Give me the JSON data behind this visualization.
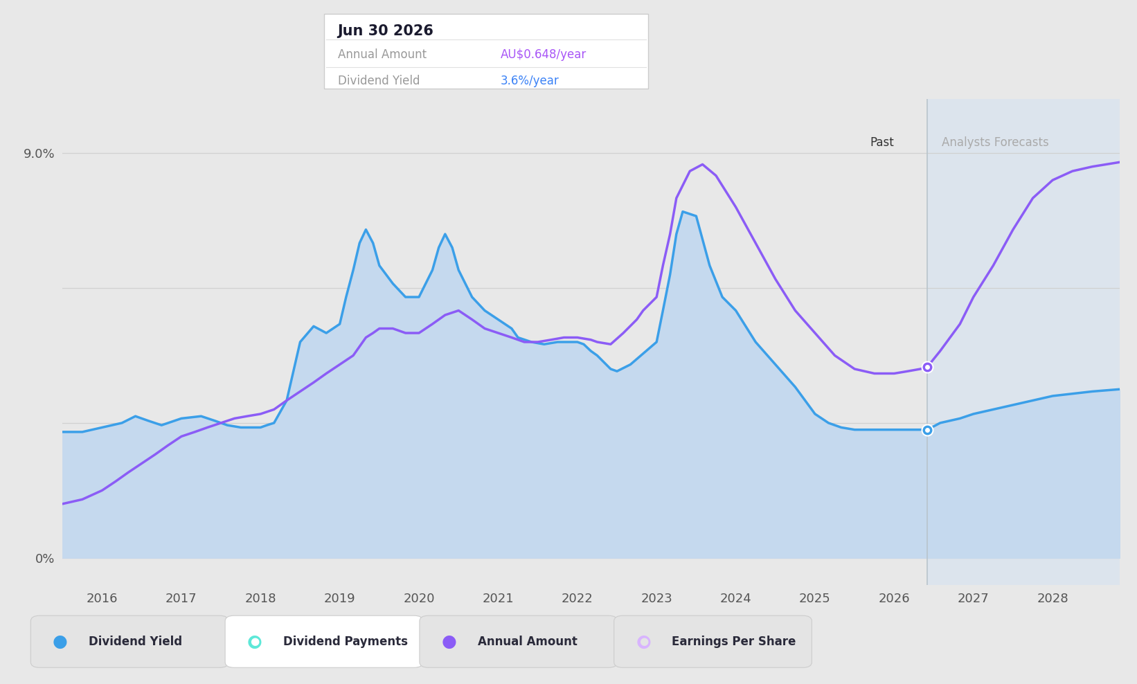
{
  "background_color": "#e8e8e8",
  "plot_bg_color": "#e8e8e8",
  "forecast_bg_color": "#dce4ed",
  "tooltip_annual_color": "#a855f7",
  "tooltip_yield_color": "#3b82f6",
  "div_yield_color": "#3b9fe8",
  "div_yield_fill": "#c5d9ee",
  "annual_amount_color": "#8b5cf6",
  "dot_color_blue": "#3b9fe8",
  "dot_color_purple": "#8b5cf6",
  "xmin": 2015.5,
  "xmax": 2028.85,
  "ymin": -0.6,
  "ymax": 10.2,
  "forecast_start_x": 2026.42,
  "div_yield_x": [
    2015.5,
    2015.75,
    2016.0,
    2016.25,
    2016.42,
    2016.58,
    2016.75,
    2017.0,
    2017.25,
    2017.42,
    2017.58,
    2017.75,
    2018.0,
    2018.08,
    2018.17,
    2018.33,
    2018.5,
    2018.67,
    2018.83,
    2019.0,
    2019.08,
    2019.17,
    2019.25,
    2019.33,
    2019.42,
    2019.5,
    2019.67,
    2019.83,
    2020.0,
    2020.17,
    2020.25,
    2020.33,
    2020.42,
    2020.5,
    2020.67,
    2020.83,
    2021.0,
    2021.17,
    2021.25,
    2021.42,
    2021.58,
    2021.75,
    2022.0,
    2022.08,
    2022.17,
    2022.25,
    2022.42,
    2022.5,
    2022.67,
    2023.0,
    2023.08,
    2023.17,
    2023.25,
    2023.33,
    2023.5,
    2023.67,
    2023.83,
    2024.0,
    2024.25,
    2024.5,
    2024.75,
    2025.0,
    2025.17,
    2025.33,
    2025.5,
    2025.67,
    2025.83,
    2026.0,
    2026.17,
    2026.33,
    2026.42,
    2026.42,
    2026.58,
    2026.83,
    2027.0,
    2027.25,
    2027.5,
    2027.75,
    2028.0,
    2028.25,
    2028.5,
    2028.85
  ],
  "div_yield_y": [
    2.8,
    2.8,
    2.9,
    3.0,
    3.15,
    3.05,
    2.95,
    3.1,
    3.15,
    3.05,
    2.95,
    2.9,
    2.9,
    2.95,
    3.0,
    3.5,
    4.8,
    5.15,
    5.0,
    5.2,
    5.8,
    6.4,
    7.0,
    7.3,
    7.0,
    6.5,
    6.1,
    5.8,
    5.8,
    6.4,
    6.9,
    7.2,
    6.9,
    6.4,
    5.8,
    5.5,
    5.3,
    5.1,
    4.9,
    4.8,
    4.75,
    4.8,
    4.8,
    4.75,
    4.6,
    4.5,
    4.2,
    4.15,
    4.3,
    4.8,
    5.5,
    6.3,
    7.2,
    7.7,
    7.6,
    6.5,
    5.8,
    5.5,
    4.8,
    4.3,
    3.8,
    3.2,
    3.0,
    2.9,
    2.85,
    2.85,
    2.85,
    2.85,
    2.85,
    2.85,
    2.85,
    2.85,
    3.0,
    3.1,
    3.2,
    3.3,
    3.4,
    3.5,
    3.6,
    3.65,
    3.7,
    3.75
  ],
  "annual_x": [
    2015.5,
    2015.75,
    2016.0,
    2016.17,
    2016.33,
    2016.5,
    2016.67,
    2016.83,
    2017.0,
    2017.17,
    2017.33,
    2017.5,
    2017.67,
    2017.83,
    2018.0,
    2018.17,
    2018.33,
    2018.5,
    2018.67,
    2018.83,
    2019.0,
    2019.17,
    2019.25,
    2019.33,
    2019.42,
    2019.5,
    2019.67,
    2019.83,
    2020.0,
    2020.17,
    2020.33,
    2020.5,
    2020.67,
    2020.83,
    2021.0,
    2021.17,
    2021.25,
    2021.33,
    2021.5,
    2021.67,
    2021.83,
    2022.0,
    2022.17,
    2022.25,
    2022.42,
    2022.58,
    2022.75,
    2022.83,
    2023.0,
    2023.08,
    2023.17,
    2023.25,
    2023.42,
    2023.58,
    2023.75,
    2024.0,
    2024.25,
    2024.5,
    2024.75,
    2025.0,
    2025.25,
    2025.5,
    2025.75,
    2026.0,
    2026.17,
    2026.33,
    2026.42,
    2026.42,
    2026.58,
    2026.83,
    2027.0,
    2027.25,
    2027.5,
    2027.75,
    2028.0,
    2028.25,
    2028.5,
    2028.85
  ],
  "annual_y": [
    1.2,
    1.3,
    1.5,
    1.7,
    1.9,
    2.1,
    2.3,
    2.5,
    2.7,
    2.8,
    2.9,
    3.0,
    3.1,
    3.15,
    3.2,
    3.3,
    3.5,
    3.7,
    3.9,
    4.1,
    4.3,
    4.5,
    4.7,
    4.9,
    5.0,
    5.1,
    5.1,
    5.0,
    5.0,
    5.2,
    5.4,
    5.5,
    5.3,
    5.1,
    5.0,
    4.9,
    4.85,
    4.8,
    4.8,
    4.85,
    4.9,
    4.9,
    4.85,
    4.8,
    4.75,
    5.0,
    5.3,
    5.5,
    5.8,
    6.5,
    7.2,
    8.0,
    8.6,
    8.75,
    8.5,
    7.8,
    7.0,
    6.2,
    5.5,
    5.0,
    4.5,
    4.2,
    4.1,
    4.1,
    4.15,
    4.2,
    4.25,
    4.25,
    4.6,
    5.2,
    5.8,
    6.5,
    7.3,
    8.0,
    8.4,
    8.6,
    8.7,
    8.8
  ],
  "legend_items": [
    {
      "label": "Dividend Yield",
      "color": "#3b9fe8",
      "filled": true
    },
    {
      "label": "Dividend Payments",
      "color": "#5de8d8",
      "filled": false
    },
    {
      "label": "Annual Amount",
      "color": "#8b5cf6",
      "filled": true
    },
    {
      "label": "Earnings Per Share",
      "color": "#d8b4fe",
      "filled": false
    }
  ],
  "xticks": [
    2016,
    2017,
    2018,
    2019,
    2020,
    2021,
    2022,
    2023,
    2024,
    2025,
    2026,
    2027,
    2028
  ],
  "grid_color": "#d0d0d0",
  "ytick_vals": [
    0,
    9
  ],
  "ytick_labels": [
    "0%",
    "9.0%"
  ]
}
